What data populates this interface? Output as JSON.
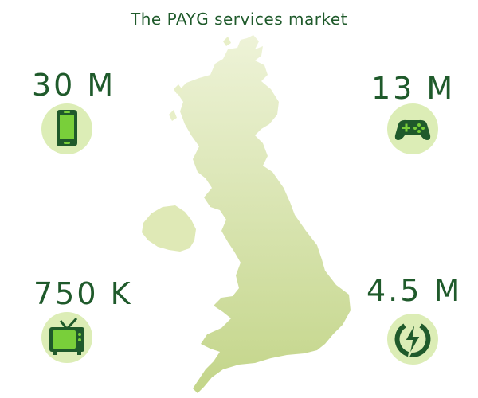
{
  "title": "The PAYG services market",
  "colors": {
    "title": "#1f5a2b",
    "value": "#1f5a2b",
    "icon_circle": "#dcedb6",
    "icon_fill": "#79cf3a",
    "icon_dark": "#1f5a2b",
    "map_fill_top": "#eef3d8",
    "map_fill_bottom": "#c7d88e"
  },
  "stats": [
    {
      "value": "30 M",
      "icon": "mobile-phone-icon"
    },
    {
      "value": "13 M",
      "icon": "gamepad-icon"
    },
    {
      "value": "750 K",
      "icon": "television-icon"
    },
    {
      "value": "4.5 M",
      "icon": "electricity-icon"
    }
  ]
}
